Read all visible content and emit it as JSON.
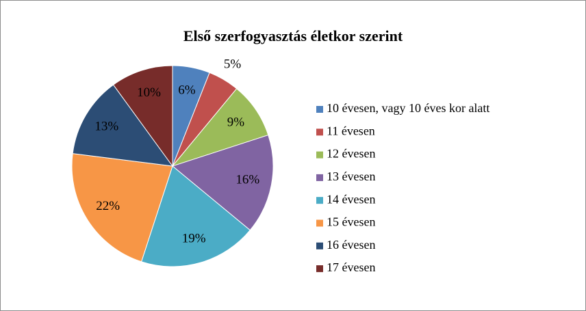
{
  "chart_data": {
    "type": "pie",
    "title": "Első szerfogyasztás életkor szerint",
    "categories": [
      "10 évesen, vagy 10 éves kor alatt",
      "11 évesen",
      "12 évesen",
      "13 évesen",
      "14 évesen",
      "15 évesen",
      "16 évesen",
      "17 évesen"
    ],
    "values": [
      6,
      5,
      9,
      16,
      19,
      22,
      13,
      10
    ],
    "value_labels": [
      "6%",
      "5%",
      "9%",
      "16%",
      "19%",
      "22%",
      "13%",
      "10%"
    ],
    "colors": [
      "#4f81bd",
      "#c0504d",
      "#9bbb59",
      "#8064a2",
      "#4bacc6",
      "#f79646",
      "#2c4d75",
      "#772c2a"
    ],
    "legend": "right"
  }
}
